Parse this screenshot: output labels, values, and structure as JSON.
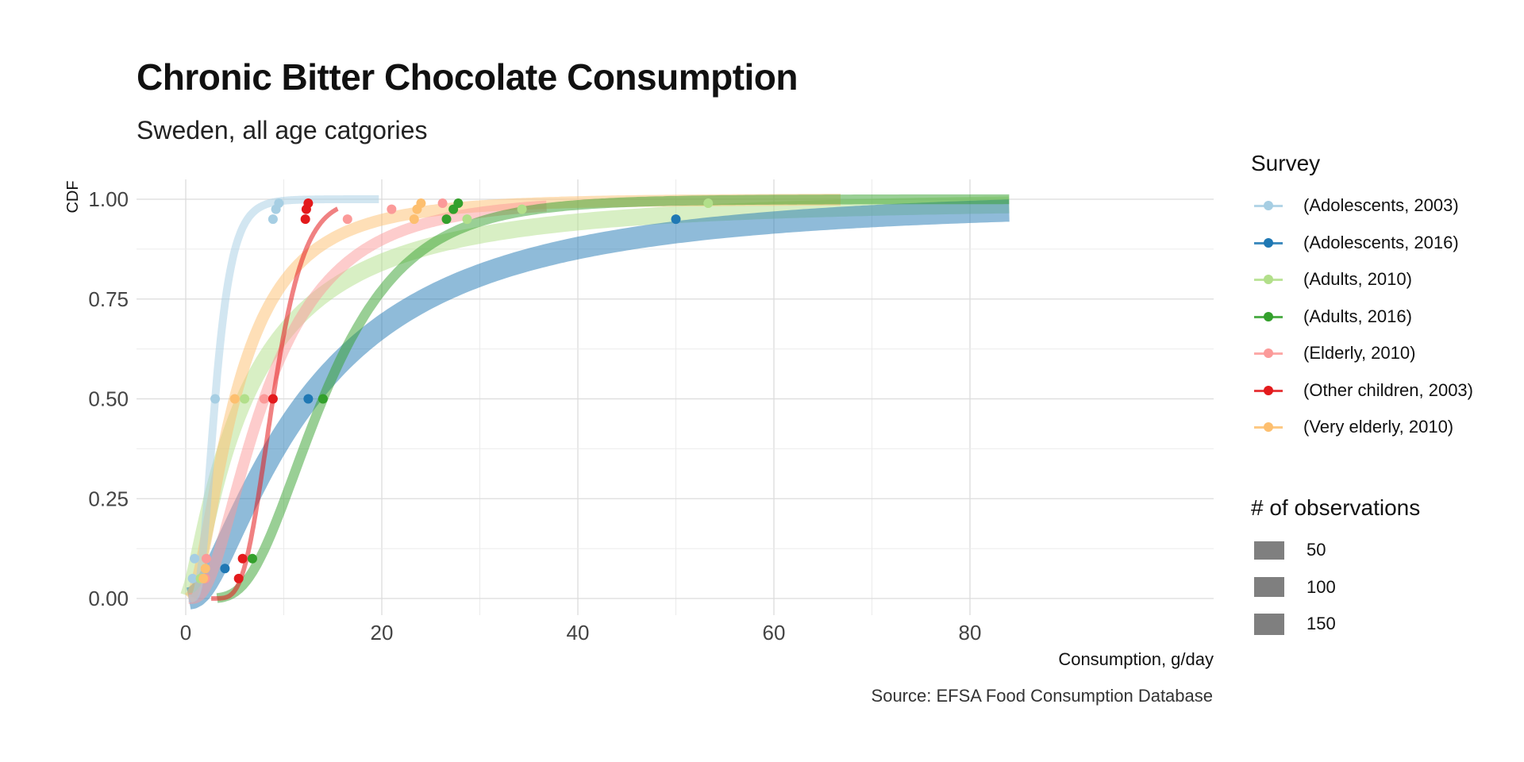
{
  "chart_data": {
    "type": "line",
    "title": "Chronic Bitter Chocolate Consumption",
    "subtitle": "Sweden, all age catgories",
    "xlabel": "Consumption, g/day",
    "ylabel": "CDF",
    "source": "Source: EFSA Food Consumption Database",
    "xlim": [
      -4,
      84
    ],
    "ylim": [
      -0.05,
      1.04
    ],
    "x_ticks": [
      0,
      20,
      40,
      60,
      80
    ],
    "x_tick_labels": [
      "0",
      "20",
      "40",
      "60",
      "80"
    ],
    "y_ticks": [
      0,
      0.25,
      0.5,
      0.75,
      1.0
    ],
    "y_tick_labels": [
      "0.00",
      "0.25",
      "0.50",
      "0.75",
      "1.00"
    ],
    "grid": true,
    "legend_title": "Survey",
    "size_legend_title": "# of observations",
    "size_legend": [
      {
        "label": "50",
        "size": 50
      },
      {
        "label": "100",
        "size": 100
      },
      {
        "label": "150",
        "size": 150
      }
    ],
    "series": [
      {
        "name": "(Adolescents, 2003)",
        "color": "#a6cee3",
        "observations": 60,
        "x_range": [
          0.3,
          19.7
        ],
        "curve": {
          "median": 3.0,
          "sigma": 0.45
        },
        "points": [
          {
            "x": 0.7,
            "y": 0.05
          },
          {
            "x": 0.9,
            "y": 0.1
          },
          {
            "x": 3.0,
            "y": 0.5
          },
          {
            "x": 8.9,
            "y": 0.95
          },
          {
            "x": 9.2,
            "y": 0.975
          },
          {
            "x": 9.5,
            "y": 0.99
          }
        ]
      },
      {
        "name": "(Adolescents, 2016)",
        "color": "#1f78b4",
        "observations": 170,
        "x_range": [
          0.3,
          84
        ],
        "curve": {
          "median": 12.5,
          "sigma": 1.0
        },
        "points": [
          {
            "x": 4.0,
            "y": 0.075
          },
          {
            "x": 12.5,
            "y": 0.5
          },
          {
            "x": 50.0,
            "y": 0.95
          }
        ]
      },
      {
        "name": "(Adults, 2010)",
        "color": "#b2df8a",
        "observations": 130,
        "x_range": [
          0.3,
          84
        ],
        "curve": {
          "median": 6.0,
          "sigma": 1.2
        },
        "points": [
          {
            "x": 1.5,
            "y": 0.05
          },
          {
            "x": 6.0,
            "y": 0.5
          },
          {
            "x": 28.7,
            "y": 0.95
          },
          {
            "x": 34.3,
            "y": 0.975
          },
          {
            "x": 53.3,
            "y": 0.99
          }
        ]
      },
      {
        "name": "(Adults, 2016)",
        "color": "#33a02c",
        "observations": 75,
        "x_range": [
          3.2,
          84
        ],
        "curve": {
          "median": 14.0,
          "sigma": 0.48
        },
        "points": [
          {
            "x": 6.8,
            "y": 0.1
          },
          {
            "x": 14.0,
            "y": 0.5
          },
          {
            "x": 26.6,
            "y": 0.95
          },
          {
            "x": 27.3,
            "y": 0.975
          },
          {
            "x": 27.8,
            "y": 0.99
          }
        ]
      },
      {
        "name": "(Elderly, 2010)",
        "color": "#fb9a99",
        "observations": 85,
        "x_range": [
          0.3,
          36.8
        ],
        "curve": {
          "median": 8.0,
          "sigma": 0.72
        },
        "points": [
          {
            "x": 2.0,
            "y": 0.05
          },
          {
            "x": 2.1,
            "y": 0.1
          },
          {
            "x": 8.0,
            "y": 0.5
          },
          {
            "x": 16.5,
            "y": 0.95
          },
          {
            "x": 21.0,
            "y": 0.975
          },
          {
            "x": 26.2,
            "y": 0.99
          }
        ]
      },
      {
        "name": "(Other children, 2003)",
        "color": "#e31a1c",
        "observations": 35,
        "x_range": [
          2.6,
          15.5
        ],
        "curve": {
          "median": 8.9,
          "sigma": 0.28
        },
        "points": [
          {
            "x": 5.4,
            "y": 0.05
          },
          {
            "x": 5.8,
            "y": 0.1
          },
          {
            "x": 8.9,
            "y": 0.5
          },
          {
            "x": 12.2,
            "y": 0.95
          },
          {
            "x": 12.3,
            "y": 0.975
          },
          {
            "x": 12.5,
            "y": 0.99
          }
        ]
      },
      {
        "name": "(Very elderly, 2010)",
        "color": "#fdbf6f",
        "observations": 90,
        "x_range": [
          0.3,
          66.8
        ],
        "curve": {
          "median": 5.0,
          "sigma": 0.85
        },
        "points": [
          {
            "x": 1.8,
            "y": 0.05
          },
          {
            "x": 2.0,
            "y": 0.075
          },
          {
            "x": 5.0,
            "y": 0.5
          },
          {
            "x": 23.3,
            "y": 0.95
          },
          {
            "x": 23.6,
            "y": 0.975
          },
          {
            "x": 24.0,
            "y": 0.99
          }
        ]
      }
    ]
  }
}
